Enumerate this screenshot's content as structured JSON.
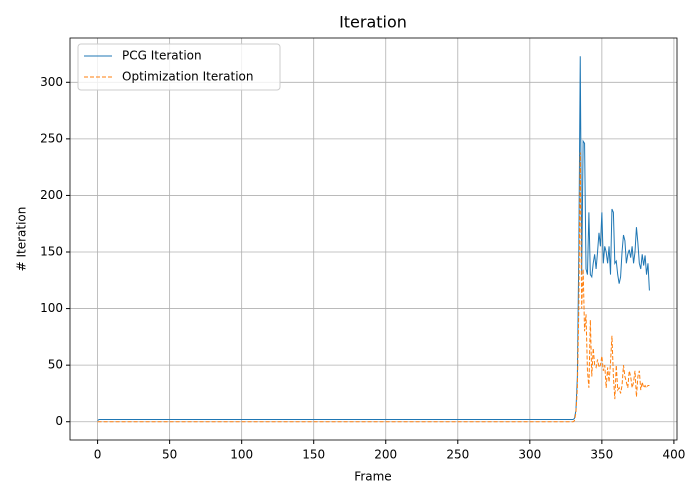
{
  "chart_data": {
    "type": "line",
    "title": "Iteration",
    "x_label": "Frame",
    "y_label": "# Iteration",
    "x": [
      0,
      1,
      330,
      331,
      332,
      333,
      334,
      335,
      336,
      337,
      338,
      339,
      340,
      341,
      342,
      343,
      344,
      345,
      346,
      347,
      348,
      349,
      350,
      351,
      352,
      353,
      354,
      355,
      356,
      357,
      358,
      359,
      360,
      361,
      362,
      363,
      364,
      365,
      366,
      367,
      368,
      369,
      370,
      371,
      372,
      373,
      374,
      375,
      376,
      377,
      378,
      379,
      380,
      381,
      382,
      383
    ],
    "series": [
      {
        "name": "PCG Iteration",
        "color": "#1f77b4",
        "dashed": false,
        "values": [
          1,
          2,
          2,
          3,
          10,
          40,
          150,
          323,
          130,
          248,
          246,
          135,
          130,
          185,
          130,
          128,
          140,
          148,
          135,
          150,
          167,
          155,
          185,
          140,
          155,
          150,
          140,
          155,
          130,
          188,
          185,
          140,
          142,
          130,
          122,
          128,
          150,
          165,
          160,
          140,
          148,
          152,
          145,
          155,
          140,
          150,
          172,
          158,
          140,
          135,
          148,
          138,
          147,
          130,
          140,
          116
        ]
      },
      {
        "name": "Optimization Iteration",
        "color": "#ff7f0e",
        "dashed": true,
        "values": [
          0,
          0,
          0,
          1,
          8,
          30,
          100,
          238,
          100,
          135,
          80,
          95,
          45,
          30,
          90,
          40,
          65,
          50,
          48,
          55,
          48,
          50,
          58,
          45,
          50,
          30,
          48,
          35,
          52,
          76,
          40,
          20,
          50,
          28,
          30,
          25,
          32,
          50,
          40,
          35,
          30,
          45,
          40,
          30,
          35,
          45,
          22,
          40,
          45,
          28,
          35,
          30,
          32,
          30,
          32,
          32
        ]
      }
    ],
    "xlim": [
      -19.15,
      402.15
    ],
    "ylim": [
      -16.15,
      339.15
    ],
    "xticks": [
      0,
      50,
      100,
      150,
      200,
      250,
      300,
      350,
      400
    ],
    "yticks": [
      0,
      50,
      100,
      150,
      200,
      250,
      300
    ],
    "grid": true,
    "legend": "upper-left"
  }
}
